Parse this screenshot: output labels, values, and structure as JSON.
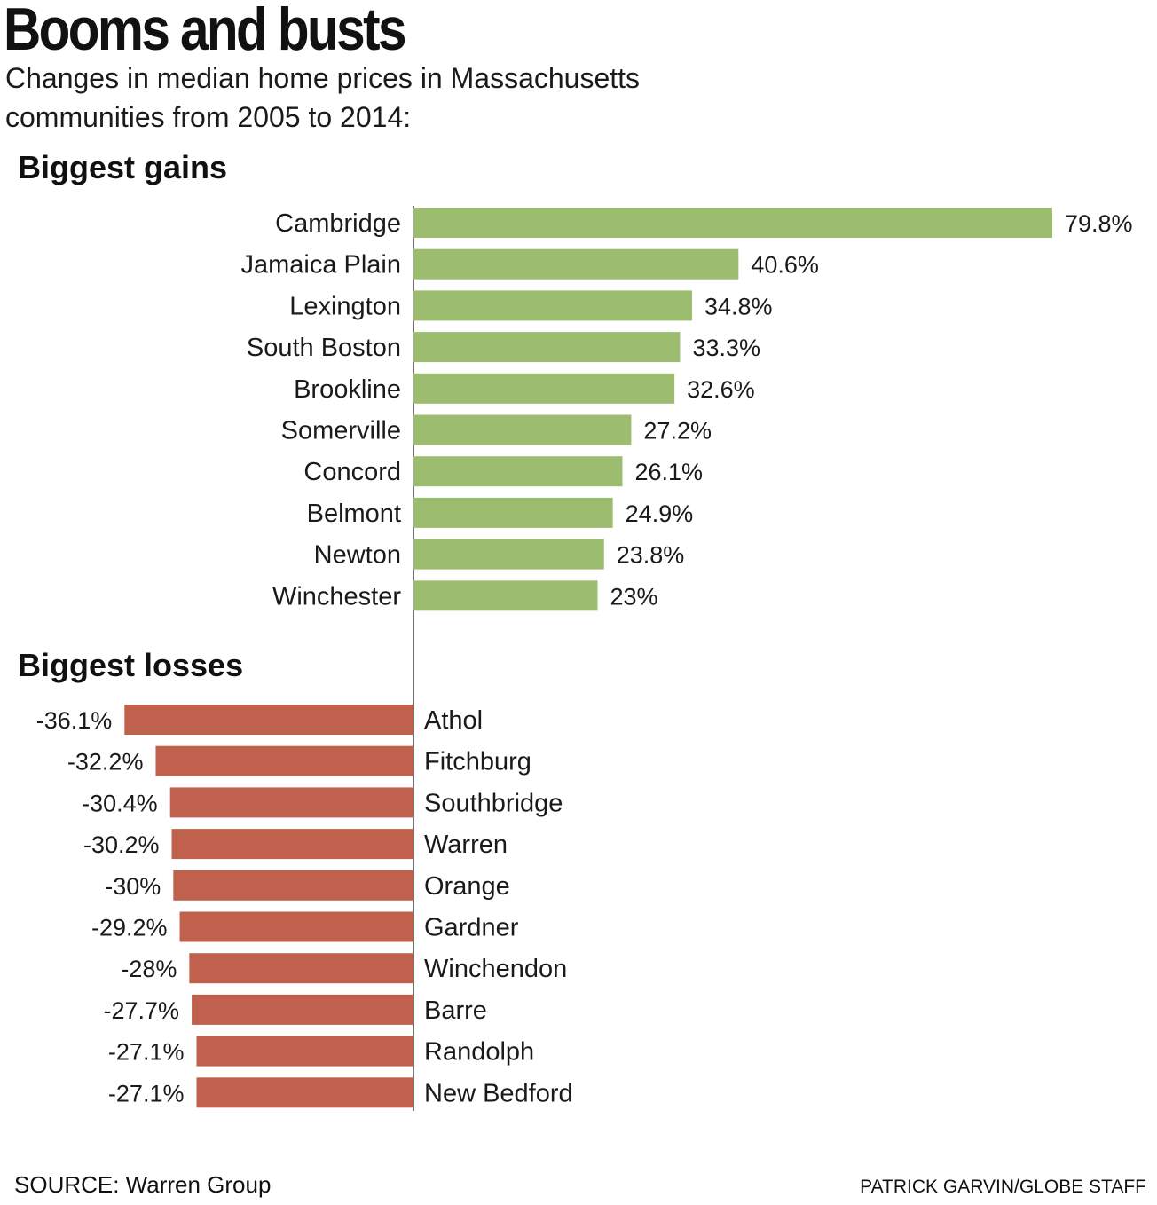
{
  "title": "Booms and busts",
  "subtitle": "Changes in median home prices in Massachusetts communities from 2005 to 2014:",
  "source": "SOURCE: Warren Group",
  "credit": "PATRICK GARVIN/GLOBE STAFF",
  "chart_data": [
    {
      "type": "bar",
      "orientation": "horizontal",
      "title": "Biggest gains",
      "unit": "%",
      "color": "#9cbd6f",
      "categories": [
        "Cambridge",
        "Jamaica Plain",
        "Lexington",
        "South Boston",
        "Brookline",
        "Somerville",
        "Concord",
        "Belmont",
        "Newton",
        "Winchester"
      ],
      "values": [
        79.8,
        40.6,
        34.8,
        33.3,
        32.6,
        27.2,
        26.1,
        24.9,
        23.8,
        23
      ],
      "value_labels": [
        "79.8%",
        "40.6%",
        "34.8%",
        "33.3%",
        "32.6%",
        "27.2%",
        "26.1%",
        "24.9%",
        "23.8%",
        "23%"
      ]
    },
    {
      "type": "bar",
      "orientation": "horizontal",
      "title": "Biggest losses",
      "unit": "%",
      "color": "#c0614d",
      "categories": [
        "Athol",
        "Fitchburg",
        "Southbridge",
        "Warren",
        "Orange",
        "Gardner",
        "Winchendon",
        "Barre",
        "Randolph",
        "New Bedford"
      ],
      "values": [
        -36.1,
        -32.2,
        -30.4,
        -30.2,
        -30,
        -29.2,
        -28,
        -27.7,
        -27.1,
        -27.1
      ],
      "value_labels": [
        "-36.1%",
        "-32.2%",
        "-30.4%",
        "-30.2%",
        "-30%",
        "-29.2%",
        "-28%",
        "-27.7%",
        "-27.1%",
        "-27.1%"
      ]
    }
  ]
}
